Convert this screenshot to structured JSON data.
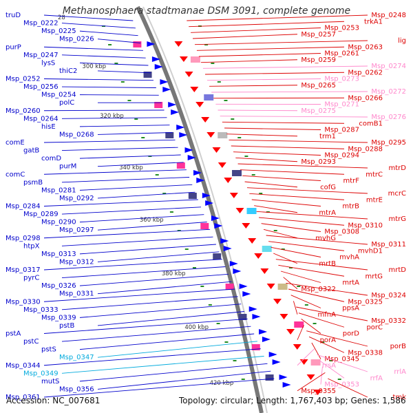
{
  "title": "Methanosphaera stadtmanae DSM 3091, complete genome",
  "accession": "Accession: NC_007681",
  "topology": "Topology: circular; Length: 1,767,403 bp; Genes: 1,586",
  "colors": {
    "backbone": "#999999",
    "plus_strand": "#0000ff",
    "minus_strand": "#ff0000",
    "light_plus": "#00bbff",
    "light_minus": "#ff88cc",
    "ticks": "#228b22"
  },
  "kbp_ticks": [
    "300 kbp",
    "320 kbp",
    "340 kbp",
    "360 kbp",
    "380 kbp",
    "400 kbp",
    "420 kbp"
  ],
  "left_labels": [
    {
      "text": "truD",
      "color": "#0000cc"
    },
    {
      "text": "Msp_0222",
      "color": "#0000cc"
    },
    {
      "text": "Msp_0225",
      "color": "#0000cc"
    },
    {
      "text": "Msp_0226",
      "color": "#0000cc"
    },
    {
      "text": "purP",
      "color": "#0000cc"
    },
    {
      "text": "Msp_0247",
      "color": "#0000cc"
    },
    {
      "text": "lysS",
      "color": "#0000cc"
    },
    {
      "text": "thiC2",
      "color": "#0000cc"
    },
    {
      "text": "Msp_0252",
      "color": "#0000cc"
    },
    {
      "text": "Msp_0256",
      "color": "#0000cc"
    },
    {
      "text": "Msp_0254",
      "color": "#0000cc"
    },
    {
      "text": "polC",
      "color": "#0000cc"
    },
    {
      "text": "Msp_0260",
      "color": "#0000cc"
    },
    {
      "text": "Msp_0264",
      "color": "#0000cc"
    },
    {
      "text": "hisE",
      "color": "#0000cc"
    },
    {
      "text": "Msp_0268",
      "color": "#0000cc"
    },
    {
      "text": "comE",
      "color": "#0000cc"
    },
    {
      "text": "gatB",
      "color": "#0000cc"
    },
    {
      "text": "comD",
      "color": "#0000cc"
    },
    {
      "text": "purM",
      "color": "#0000cc"
    },
    {
      "text": "comC",
      "color": "#0000cc"
    },
    {
      "text": "psmB",
      "color": "#0000cc"
    },
    {
      "text": "Msp_0281",
      "color": "#0000cc"
    },
    {
      "text": "Msp_0292",
      "color": "#0000cc"
    },
    {
      "text": "Msp_0284",
      "color": "#0000cc"
    },
    {
      "text": "Msp_0289",
      "color": "#0000cc"
    },
    {
      "text": "Msp_0290",
      "color": "#0000cc"
    },
    {
      "text": "Msp_0297",
      "color": "#0000cc"
    },
    {
      "text": "Msp_0298",
      "color": "#0000cc"
    },
    {
      "text": "htpX",
      "color": "#0000cc"
    },
    {
      "text": "Msp_0313",
      "color": "#0000cc"
    },
    {
      "text": "Msp_0312",
      "color": "#0000cc"
    },
    {
      "text": "Msp_0317",
      "color": "#0000cc"
    },
    {
      "text": "pyrC",
      "color": "#0000cc"
    },
    {
      "text": "Msp_0326",
      "color": "#0000cc"
    },
    {
      "text": "Msp_0331",
      "color": "#0000cc"
    },
    {
      "text": "Msp_0330",
      "color": "#0000cc"
    },
    {
      "text": "Msp_0333",
      "color": "#0000cc"
    },
    {
      "text": "Msp_0339",
      "color": "#0000cc"
    },
    {
      "text": "pstB",
      "color": "#0000cc"
    },
    {
      "text": "pstA",
      "color": "#0000cc"
    },
    {
      "text": "pstC",
      "color": "#0000cc"
    },
    {
      "text": "pstS",
      "color": "#0000cc"
    },
    {
      "text": "Msp_0347",
      "color": "#00aadd"
    },
    {
      "text": "Msp_0344",
      "color": "#0000cc"
    },
    {
      "text": "Msp_0349",
      "color": "#00aadd"
    },
    {
      "text": "mutS",
      "color": "#0000cc"
    },
    {
      "text": "Msp_0356",
      "color": "#0000cc"
    },
    {
      "text": "Msp_0361",
      "color": "#0000cc"
    }
  ],
  "right_labels": [
    {
      "text": "Msp_0248",
      "color": "#dd0000"
    },
    {
      "text": "trkA1",
      "color": "#dd0000"
    },
    {
      "text": "Msp_0253",
      "color": "#dd0000"
    },
    {
      "text": "Msp_0257",
      "color": "#dd0000"
    },
    {
      "text": "lig",
      "color": "#dd0000"
    },
    {
      "text": "Msp_0263",
      "color": "#dd0000"
    },
    {
      "text": "Msp_0261",
      "color": "#dd0000"
    },
    {
      "text": "Msp_0259",
      "color": "#dd0000"
    },
    {
      "text": "Msp_0274",
      "color": "#ff88cc"
    },
    {
      "text": "Msp_0262",
      "color": "#dd0000"
    },
    {
      "text": "Msp_0273",
      "color": "#ff88cc"
    },
    {
      "text": "Msp_0265",
      "color": "#dd0000"
    },
    {
      "text": "Msp_0272",
      "color": "#ff88cc"
    },
    {
      "text": "Msp_0266",
      "color": "#dd0000"
    },
    {
      "text": "Msp_0271",
      "color": "#ff88cc"
    },
    {
      "text": "Msp_0275",
      "color": "#ff88cc"
    },
    {
      "text": "Msp_0276",
      "color": "#ff88cc"
    },
    {
      "text": "comB1",
      "color": "#dd0000"
    },
    {
      "text": "Msp_0287",
      "color": "#dd0000"
    },
    {
      "text": "trm1",
      "color": "#dd0000"
    },
    {
      "text": "Msp_0295",
      "color": "#dd0000"
    },
    {
      "text": "Msp_0288",
      "color": "#dd0000"
    },
    {
      "text": "Msp_0294",
      "color": "#dd0000"
    },
    {
      "text": "Msp_0293",
      "color": "#dd0000"
    },
    {
      "text": "mtrD",
      "color": "#dd0000"
    },
    {
      "text": "mtrC",
      "color": "#dd0000"
    },
    {
      "text": "mtrF",
      "color": "#dd0000"
    },
    {
      "text": "cofG",
      "color": "#dd0000"
    },
    {
      "text": "mcrC",
      "color": "#dd0000"
    },
    {
      "text": "mtrE",
      "color": "#dd0000"
    },
    {
      "text": "mtrB",
      "color": "#dd0000"
    },
    {
      "text": "mtrA",
      "color": "#dd0000"
    },
    {
      "text": "mtrG",
      "color": "#dd0000"
    },
    {
      "text": "Msp_0310",
      "color": "#dd0000"
    },
    {
      "text": "Msp_0308",
      "color": "#dd0000"
    },
    {
      "text": "mvhG",
      "color": "#dd0000"
    },
    {
      "text": "Msp_0311",
      "color": "#dd0000"
    },
    {
      "text": "mvhD1",
      "color": "#dd0000"
    },
    {
      "text": "mvhA",
      "color": "#dd0000"
    },
    {
      "text": "mrtB",
      "color": "#dd0000"
    },
    {
      "text": "mrtD",
      "color": "#dd0000"
    },
    {
      "text": "mrtG",
      "color": "#dd0000"
    },
    {
      "text": "mrtA",
      "color": "#dd0000"
    },
    {
      "text": "Msp_0322",
      "color": "#dd0000"
    },
    {
      "text": "Msp_0324",
      "color": "#dd0000"
    },
    {
      "text": "Msp_0325",
      "color": "#dd0000"
    },
    {
      "text": "ppsA",
      "color": "#dd0000"
    },
    {
      "text": "mfnA",
      "color": "#dd0000"
    },
    {
      "text": "Msp_0332",
      "color": "#dd0000"
    },
    {
      "text": "porC",
      "color": "#dd0000"
    },
    {
      "text": "porD",
      "color": "#dd0000"
    },
    {
      "text": "porA",
      "color": "#dd0000"
    },
    {
      "text": "porB",
      "color": "#dd0000"
    },
    {
      "text": "Msp_0338",
      "color": "#dd0000"
    },
    {
      "text": "Msp_0345",
      "color": "#dd0000"
    },
    {
      "text": "rrsA",
      "color": "#ff88cc"
    },
    {
      "text": "rrlA",
      "color": "#ff88cc"
    },
    {
      "text": "rrfA",
      "color": "#ff88cc"
    },
    {
      "text": "Msp_0353",
      "color": "#ff88cc"
    },
    {
      "text": "Msp_0355",
      "color": "#dd0000"
    },
    {
      "text": "tmk",
      "color": "#dd0000"
    }
  ],
  "misc_text": {
    "tick_28": "28"
  }
}
